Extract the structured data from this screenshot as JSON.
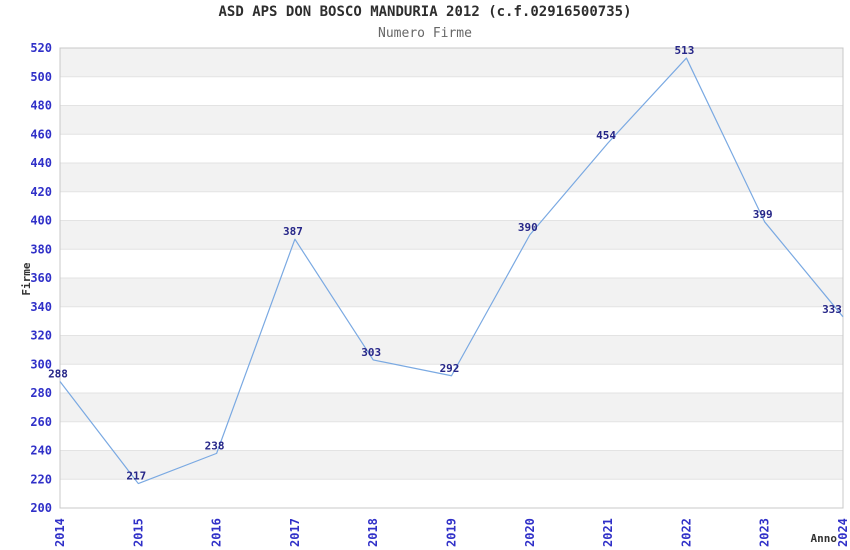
{
  "chart_data": {
    "type": "line",
    "title": "ASD APS DON BOSCO MANDURIA 2012 (c.f.02916500735)",
    "subtitle": "Numero Firme",
    "xlabel": "Anno",
    "ylabel": "Firme",
    "categories": [
      "2014",
      "2015",
      "2016",
      "2017",
      "2018",
      "2019",
      "2020",
      "2021",
      "2022",
      "2023",
      "2024"
    ],
    "series": [
      {
        "name": "Numero Firme",
        "values": [
          288,
          217,
          238,
          387,
          303,
          292,
          390,
          454,
          513,
          399,
          333
        ]
      }
    ],
    "ylim": [
      200,
      520
    ],
    "ytick_step": 20,
    "grid": true,
    "legend": "none",
    "value_labels_shown": true,
    "colors": {
      "line": "#7aa9e2",
      "tick_label": "#3030c8",
      "value_label": "#262688",
      "title": "#2e2e2e",
      "subtitle": "#676767",
      "axis_title": "#333333",
      "band": "#f2f2f2",
      "band_alt": "#ffffff",
      "grid_line": "#e3e3e3",
      "border": "#c8c8c8",
      "background": "#ffffff"
    }
  }
}
